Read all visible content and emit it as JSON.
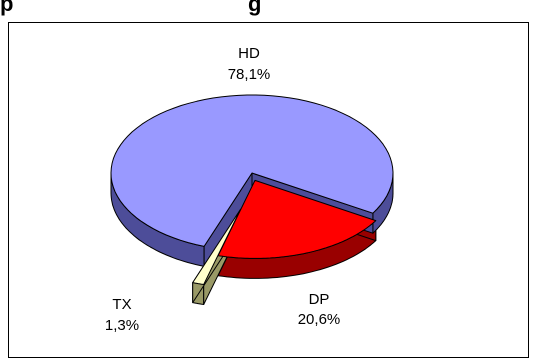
{
  "chart_data": {
    "type": "pie",
    "title": "p",
    "title_suffix": "g",
    "three_d": true,
    "exploded": true,
    "slices": [
      {
        "label": "HD",
        "value": 78.1,
        "value_text": "78,1%",
        "color": "#9999ff"
      },
      {
        "label": "DP",
        "value": 20.6,
        "value_text": "20,6%",
        "color": "#ff0000"
      },
      {
        "label": "TX",
        "value": 1.3,
        "value_text": "1,3%",
        "color": "#ffffcc"
      }
    ]
  }
}
